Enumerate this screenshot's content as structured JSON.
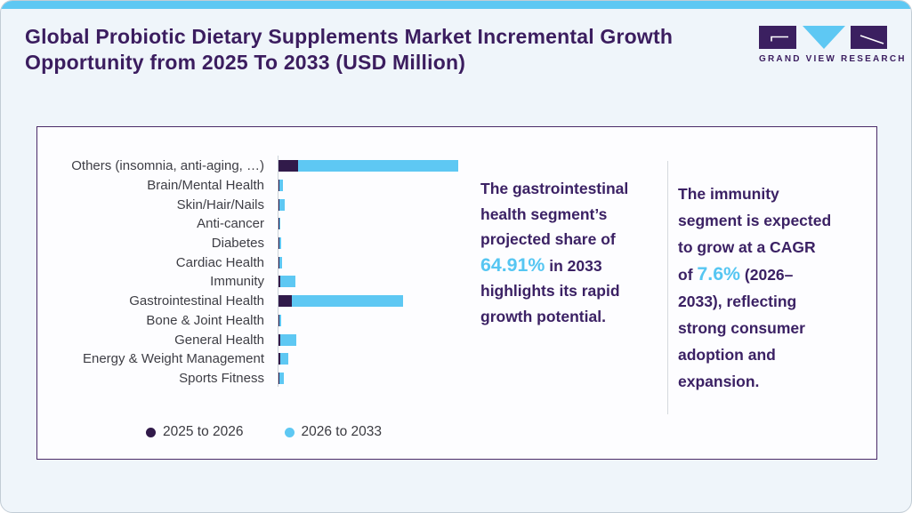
{
  "header": {
    "title": "Global Probiotic Dietary Supplements Market Incremental Growth Opportunity from 2025 To 2033 (USD Million)",
    "logo": {
      "wordmark": "GRAND VIEW RESEARCH"
    }
  },
  "colors": {
    "accent_blue": "#5EC8F3",
    "bar_dark_purple": "#311A4A",
    "bar_light_blue": "#5EC8F3",
    "title_purple": "#3B1D5F",
    "insight_text_purple": "#3B2164",
    "highlight_blue": "#56C6F2",
    "category_label_gray": "#3E3E45",
    "card_border_purple": "#4A2A68",
    "page_background": "#EFF5FA",
    "card_background": "#FDFDFF"
  },
  "chart_data": {
    "type": "bar",
    "orientation": "horizontal",
    "stacked": true,
    "title": "Global Probiotic Dietary Supplements Market Incremental Growth Opportunity from 2025 To 2033 (USD Million)",
    "unit": "USD Million",
    "axis_values_labeled": false,
    "values_are": "approximate relative bar lengths estimated from pixels (no numeric axis shown)",
    "categories": [
      "Others (insomnia, anti-aging, …)",
      "Brain/Mental Health",
      "Skin/Hair/Nails",
      "Anti-cancer",
      "Diabetes",
      "Cardiac Health",
      "Immunity",
      "Gastrointestinal Health",
      "Bone & Joint Health",
      "General Health",
      "Energy & Weight Management",
      "Sports Fitness"
    ],
    "series": [
      {
        "name": "2025 to 2026",
        "color": "#311A4A",
        "values": [
          22,
          1,
          1,
          0.5,
          0.5,
          0.5,
          2,
          15,
          0.5,
          2,
          2,
          0.5
        ]
      },
      {
        "name": "2026 to 2033",
        "color": "#5EC8F3",
        "values": [
          180,
          4,
          6,
          1,
          2,
          3,
          17,
          125,
          2,
          18,
          9,
          5
        ]
      }
    ],
    "legend_position": "bottom"
  },
  "insights": [
    {
      "before": "The gastrointestinal health segment’s projected share of ",
      "highlight": "64.91%",
      "after": " in 2033 highlights its rapid growth potential."
    },
    {
      "before": "The immunity segment is expected to grow at a CAGR of ",
      "highlight": "7.6%",
      "after": " (2026–2033), reflecting strong consumer adoption and expansion."
    }
  ]
}
